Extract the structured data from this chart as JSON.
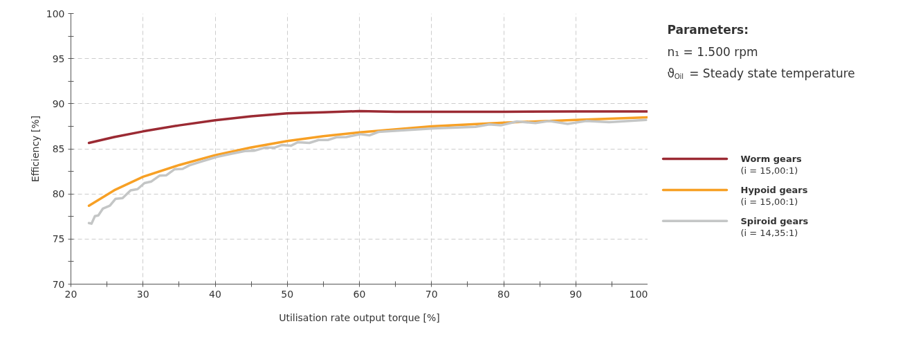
{
  "chart_data": {
    "type": "line",
    "xlabel": "Utilisation rate output torque [%]",
    "ylabel": "Efficiency [%]",
    "xlim": [
      20,
      100
    ],
    "ylim": [
      70,
      100
    ],
    "xticks": [
      20,
      {
        "value": 25,
        "label": null
      },
      30,
      {
        "value": 35,
        "label": null
      },
      40,
      {
        "value": 45,
        "label": null
      },
      50,
      {
        "value": 55,
        "label": null
      },
      60,
      {
        "value": 65,
        "label": null
      },
      70,
      {
        "value": 75,
        "label": null
      },
      80,
      {
        "value": 85,
        "label": null
      },
      90,
      {
        "value": 95,
        "label": null
      },
      100
    ],
    "yticks": [
      70,
      {
        "value": 72.5,
        "label": null
      },
      75,
      {
        "value": 77.5,
        "label": null
      },
      80,
      {
        "value": 82.5,
        "label": null
      },
      85,
      {
        "value": 87.5,
        "label": null
      },
      90,
      {
        "value": 92.5,
        "label": null
      },
      95,
      {
        "value": 97.5,
        "label": null
      },
      100
    ],
    "grid": true,
    "legend": "right",
    "line_style": "solid",
    "marker": "none",
    "annotations": [
      "Parameters:",
      "n₁ = 1.500 rpm",
      "ϑ$_{Oil}$ = Steady state temperature"
    ],
    "series": [
      {
        "name": "Worm gears\n(i = 15,00:1)",
        "color": "#9b2a33",
        "x": [
          22.5,
          26,
          30,
          35,
          40,
          45,
          50,
          55,
          60,
          65,
          70,
          80,
          90,
          100
        ],
        "values": [
          85.65,
          86.3,
          86.93,
          87.6,
          88.16,
          88.6,
          88.93,
          89.05,
          89.18,
          89.1,
          89.1,
          89.1,
          89.15,
          89.15
        ]
      },
      {
        "name": "Hypoid gears\n(i = 15,00:1)",
        "color": "#f7a025",
        "x": [
          22.5,
          26,
          30,
          35,
          40,
          45,
          50,
          55,
          60,
          70,
          80,
          90,
          100
        ],
        "values": [
          78.69,
          80.4,
          81.9,
          83.2,
          84.3,
          85.15,
          85.86,
          86.4,
          86.83,
          87.5,
          87.9,
          88.2,
          88.49
        ]
      },
      {
        "name": "Spiroid gears\n(i = 14,35:1)",
        "color": "#c4c6c6",
        "x": [
          22.5,
          22.85,
          23.33,
          23.8,
          24.44,
          25.4,
          26.2,
          27.16,
          28.28,
          29.24,
          30.2,
          31.16,
          32.28,
          33.24,
          34.36,
          35.48,
          36.43,
          37.71,
          38.99,
          40.27,
          42.19,
          44.11,
          45.39,
          46.99,
          48.27,
          49.22,
          50.5,
          51.46,
          53.06,
          54.34,
          55.62,
          56.9,
          58.18,
          60.1,
          61.38,
          62.65,
          70.33,
          76.08,
          78.0,
          79.6,
          81.84,
          84.4,
          86.3,
          88.87,
          91.43,
          94.63,
          99.74
        ],
        "values": [
          76.77,
          76.7,
          77.54,
          77.62,
          78.38,
          78.69,
          79.46,
          79.53,
          80.4,
          80.53,
          81.2,
          81.38,
          82.02,
          82.07,
          82.73,
          82.78,
          83.17,
          83.5,
          83.81,
          84.11,
          84.45,
          84.75,
          84.78,
          85.14,
          85.14,
          85.42,
          85.34,
          85.73,
          85.65,
          85.98,
          85.98,
          86.29,
          86.31,
          86.62,
          86.49,
          86.88,
          87.26,
          87.44,
          87.7,
          87.6,
          88.03,
          87.85,
          88.08,
          87.77,
          88.08,
          87.96,
          88.2
        ]
      }
    ]
  }
}
